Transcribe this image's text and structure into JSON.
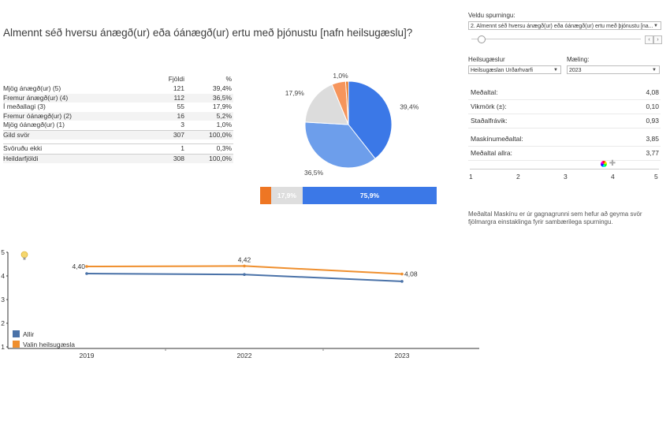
{
  "title": "Almennt séð hversu ánægð(ur) eða óánægð(ur) ertu með þjónustu [nafn heilsugæslu]?",
  "freq_table": {
    "headers": [
      "Fjöldi",
      "%"
    ],
    "rows": [
      {
        "label": "Mjög ánægð(ur) (5)",
        "count": "121",
        "pct": "39,4%"
      },
      {
        "label": "Fremur ánægð(ur) (4)",
        "count": "112",
        "pct": "36,5%"
      },
      {
        "label": "Í meðallagi (3)",
        "count": "55",
        "pct": "17,9%"
      },
      {
        "label": "Fremur óánægð(ur) (2)",
        "count": "16",
        "pct": "5,2%"
      },
      {
        "label": "Mjög óánægð(ur) (1)",
        "count": "3",
        "pct": "1,0%"
      },
      {
        "label": "Gild svör",
        "count": "307",
        "pct": "100,0%"
      }
    ],
    "extra_rows": [
      {
        "label": "Svöruðu ekki",
        "count": "1",
        "pct": "0,3%"
      },
      {
        "label": "Heildarfjöldi",
        "count": "308",
        "pct": "100,0%"
      }
    ]
  },
  "pie": {
    "slices": [
      {
        "value": 39.4,
        "label": "39,4%",
        "color": "#3b78e7"
      },
      {
        "value": 36.5,
        "label": "36,5%",
        "color": "#6d9eeb"
      },
      {
        "value": 17.9,
        "label": "17,9%",
        "color": "#dcdcdc"
      },
      {
        "value": 5.2,
        "label": "",
        "color": "#f6955c"
      },
      {
        "value": 1.0,
        "label": "1,0%",
        "color": "#e8711a"
      }
    ]
  },
  "stacked_bar": {
    "segments": [
      {
        "value": 6.2,
        "label": "",
        "color": "#ee7623"
      },
      {
        "value": 17.9,
        "label": "17,9%",
        "color": "#dedede"
      },
      {
        "value": 75.9,
        "label": "75,9%",
        "color": "#3b78e7"
      }
    ]
  },
  "controls": {
    "question_label": "Veldu spurningu:",
    "question_value": "2. Almennt séð hversu ánægð(ur) eða óánægð(ur) ertu með þjónustu [na...",
    "prev_icon": "‹",
    "next_icon": "›",
    "clinic_label": "Heilsugæslur",
    "clinic_value": "Heilsugæslan Urðarhvarfi",
    "measure_label": "Mæling:",
    "measure_value": "2023"
  },
  "stats": [
    {
      "label": "Meðaltal:",
      "value": "4,08"
    },
    {
      "label": "Vikmörk (±):",
      "value": "0,10"
    },
    {
      "label": "Staðalfrávik:",
      "value": "0,93"
    },
    {
      "label": "Maskínumeðaltal:",
      "value": "3,85"
    },
    {
      "label": "Meðaltal allra:",
      "value": "3,77"
    }
  ],
  "scale_ticks": [
    "1",
    "2",
    "3",
    "4",
    "5"
  ],
  "footnote": "Meðaltal Maskínu er úr gagnagrunni sem hefur að geyma svör fjölmargra einstaklinga fyrir sambærilega spurningu.",
  "chart_data": {
    "type": "line",
    "x": [
      "2019",
      "2022",
      "2023"
    ],
    "ylim": [
      1,
      5
    ],
    "yticks": [
      "1",
      "2",
      "3",
      "4",
      "5"
    ],
    "series": [
      {
        "name": "Allir",
        "values": [
          4.1,
          4.06,
          3.77
        ],
        "color": "#4a72a8",
        "labels": [
          "",
          "",
          ""
        ]
      },
      {
        "name": "Valin heilsugæsla",
        "values": [
          4.4,
          4.42,
          4.08
        ],
        "color": "#ef8f2e",
        "labels": [
          "4,40",
          "4,42",
          "4,08"
        ]
      }
    ]
  }
}
